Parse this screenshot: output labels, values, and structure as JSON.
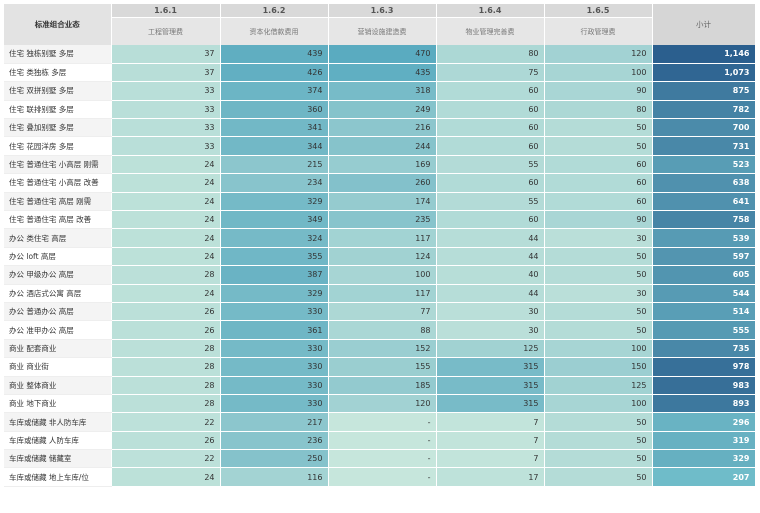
{
  "table": {
    "corner_label": "标准组合业态",
    "subtotal_label": "小计",
    "columns": [
      {
        "code": "1.6.1",
        "name": "工程管理费"
      },
      {
        "code": "1.6.2",
        "name": "资本化借款费用"
      },
      {
        "code": "1.6.3",
        "name": "营销设施建造费"
      },
      {
        "code": "1.6.4",
        "name": "物业管理完善费"
      },
      {
        "code": "1.6.5",
        "name": "行政管理费"
      }
    ],
    "rows": [
      {
        "label": "住宅 独栋别墅 多层",
        "values": [
          "37",
          "439",
          "470",
          "80",
          "120"
        ],
        "subtotal": "1,146"
      },
      {
        "label": "住宅 类独栋 多层",
        "values": [
          "37",
          "426",
          "435",
          "75",
          "100"
        ],
        "subtotal": "1,073"
      },
      {
        "label": "住宅 双拼别墅 多层",
        "values": [
          "33",
          "374",
          "318",
          "60",
          "90"
        ],
        "subtotal": "875"
      },
      {
        "label": "住宅 联排别墅 多层",
        "values": [
          "33",
          "360",
          "249",
          "60",
          "80"
        ],
        "subtotal": "782"
      },
      {
        "label": "住宅 叠加别墅 多层",
        "values": [
          "33",
          "341",
          "216",
          "60",
          "50"
        ],
        "subtotal": "700"
      },
      {
        "label": "住宅 花园洋房 多层",
        "values": [
          "33",
          "344",
          "244",
          "60",
          "50"
        ],
        "subtotal": "731"
      },
      {
        "label": "住宅 普通住宅 小高层 刚需",
        "values": [
          "24",
          "215",
          "169",
          "55",
          "60"
        ],
        "subtotal": "523"
      },
      {
        "label": "住宅 普通住宅 小高层 改善",
        "values": [
          "24",
          "234",
          "260",
          "60",
          "60"
        ],
        "subtotal": "638"
      },
      {
        "label": "住宅 普通住宅 高层 刚需",
        "values": [
          "24",
          "329",
          "174",
          "55",
          "60"
        ],
        "subtotal": "641"
      },
      {
        "label": "住宅 普通住宅 高层 改善",
        "values": [
          "24",
          "349",
          "235",
          "60",
          "90"
        ],
        "subtotal": "758"
      },
      {
        "label": "办公 类住宅 高层",
        "values": [
          "24",
          "324",
          "117",
          "44",
          "30"
        ],
        "subtotal": "539"
      },
      {
        "label": "办公 loft 高层",
        "values": [
          "24",
          "355",
          "124",
          "44",
          "50"
        ],
        "subtotal": "597"
      },
      {
        "label": "办公 甲级办公 高层",
        "values": [
          "28",
          "387",
          "100",
          "40",
          "50"
        ],
        "subtotal": "605"
      },
      {
        "label": "办公 酒店式公寓 高层",
        "values": [
          "24",
          "329",
          "117",
          "44",
          "30"
        ],
        "subtotal": "544"
      },
      {
        "label": "办公 普通办公 高层",
        "values": [
          "26",
          "330",
          "77",
          "30",
          "50"
        ],
        "subtotal": "514"
      },
      {
        "label": "办公 准甲办公 高层",
        "values": [
          "26",
          "361",
          "88",
          "30",
          "50"
        ],
        "subtotal": "555"
      },
      {
        "label": "商业 配套商业",
        "values": [
          "28",
          "330",
          "152",
          "125",
          "100"
        ],
        "subtotal": "735"
      },
      {
        "label": "商业 商业街",
        "values": [
          "28",
          "330",
          "155",
          "315",
          "150"
        ],
        "subtotal": "978"
      },
      {
        "label": "商业 整体商业",
        "values": [
          "28",
          "330",
          "185",
          "315",
          "125"
        ],
        "subtotal": "983"
      },
      {
        "label": "商业 地下商业",
        "values": [
          "28",
          "330",
          "120",
          "315",
          "100"
        ],
        "subtotal": "893"
      },
      {
        "label": "车库或储藏 非人防车库",
        "values": [
          "22",
          "217",
          "-",
          "7",
          "50"
        ],
        "subtotal": "296"
      },
      {
        "label": "车库或储藏 人防车库",
        "values": [
          "26",
          "236",
          "-",
          "7",
          "50"
        ],
        "subtotal": "319"
      },
      {
        "label": "车库或储藏 储藏室",
        "values": [
          "22",
          "250",
          "-",
          "7",
          "50"
        ],
        "subtotal": "329"
      },
      {
        "label": "车库或储藏 地上车库/位",
        "values": [
          "24",
          "116",
          "-",
          "17",
          "50"
        ],
        "subtotal": "207"
      }
    ]
  },
  "colors": {
    "cell_low": "#c6e6dc",
    "cell_high": "#5aabc0",
    "subtotal_low": "#6fbcc9",
    "subtotal_high": "#2b5f8e"
  }
}
